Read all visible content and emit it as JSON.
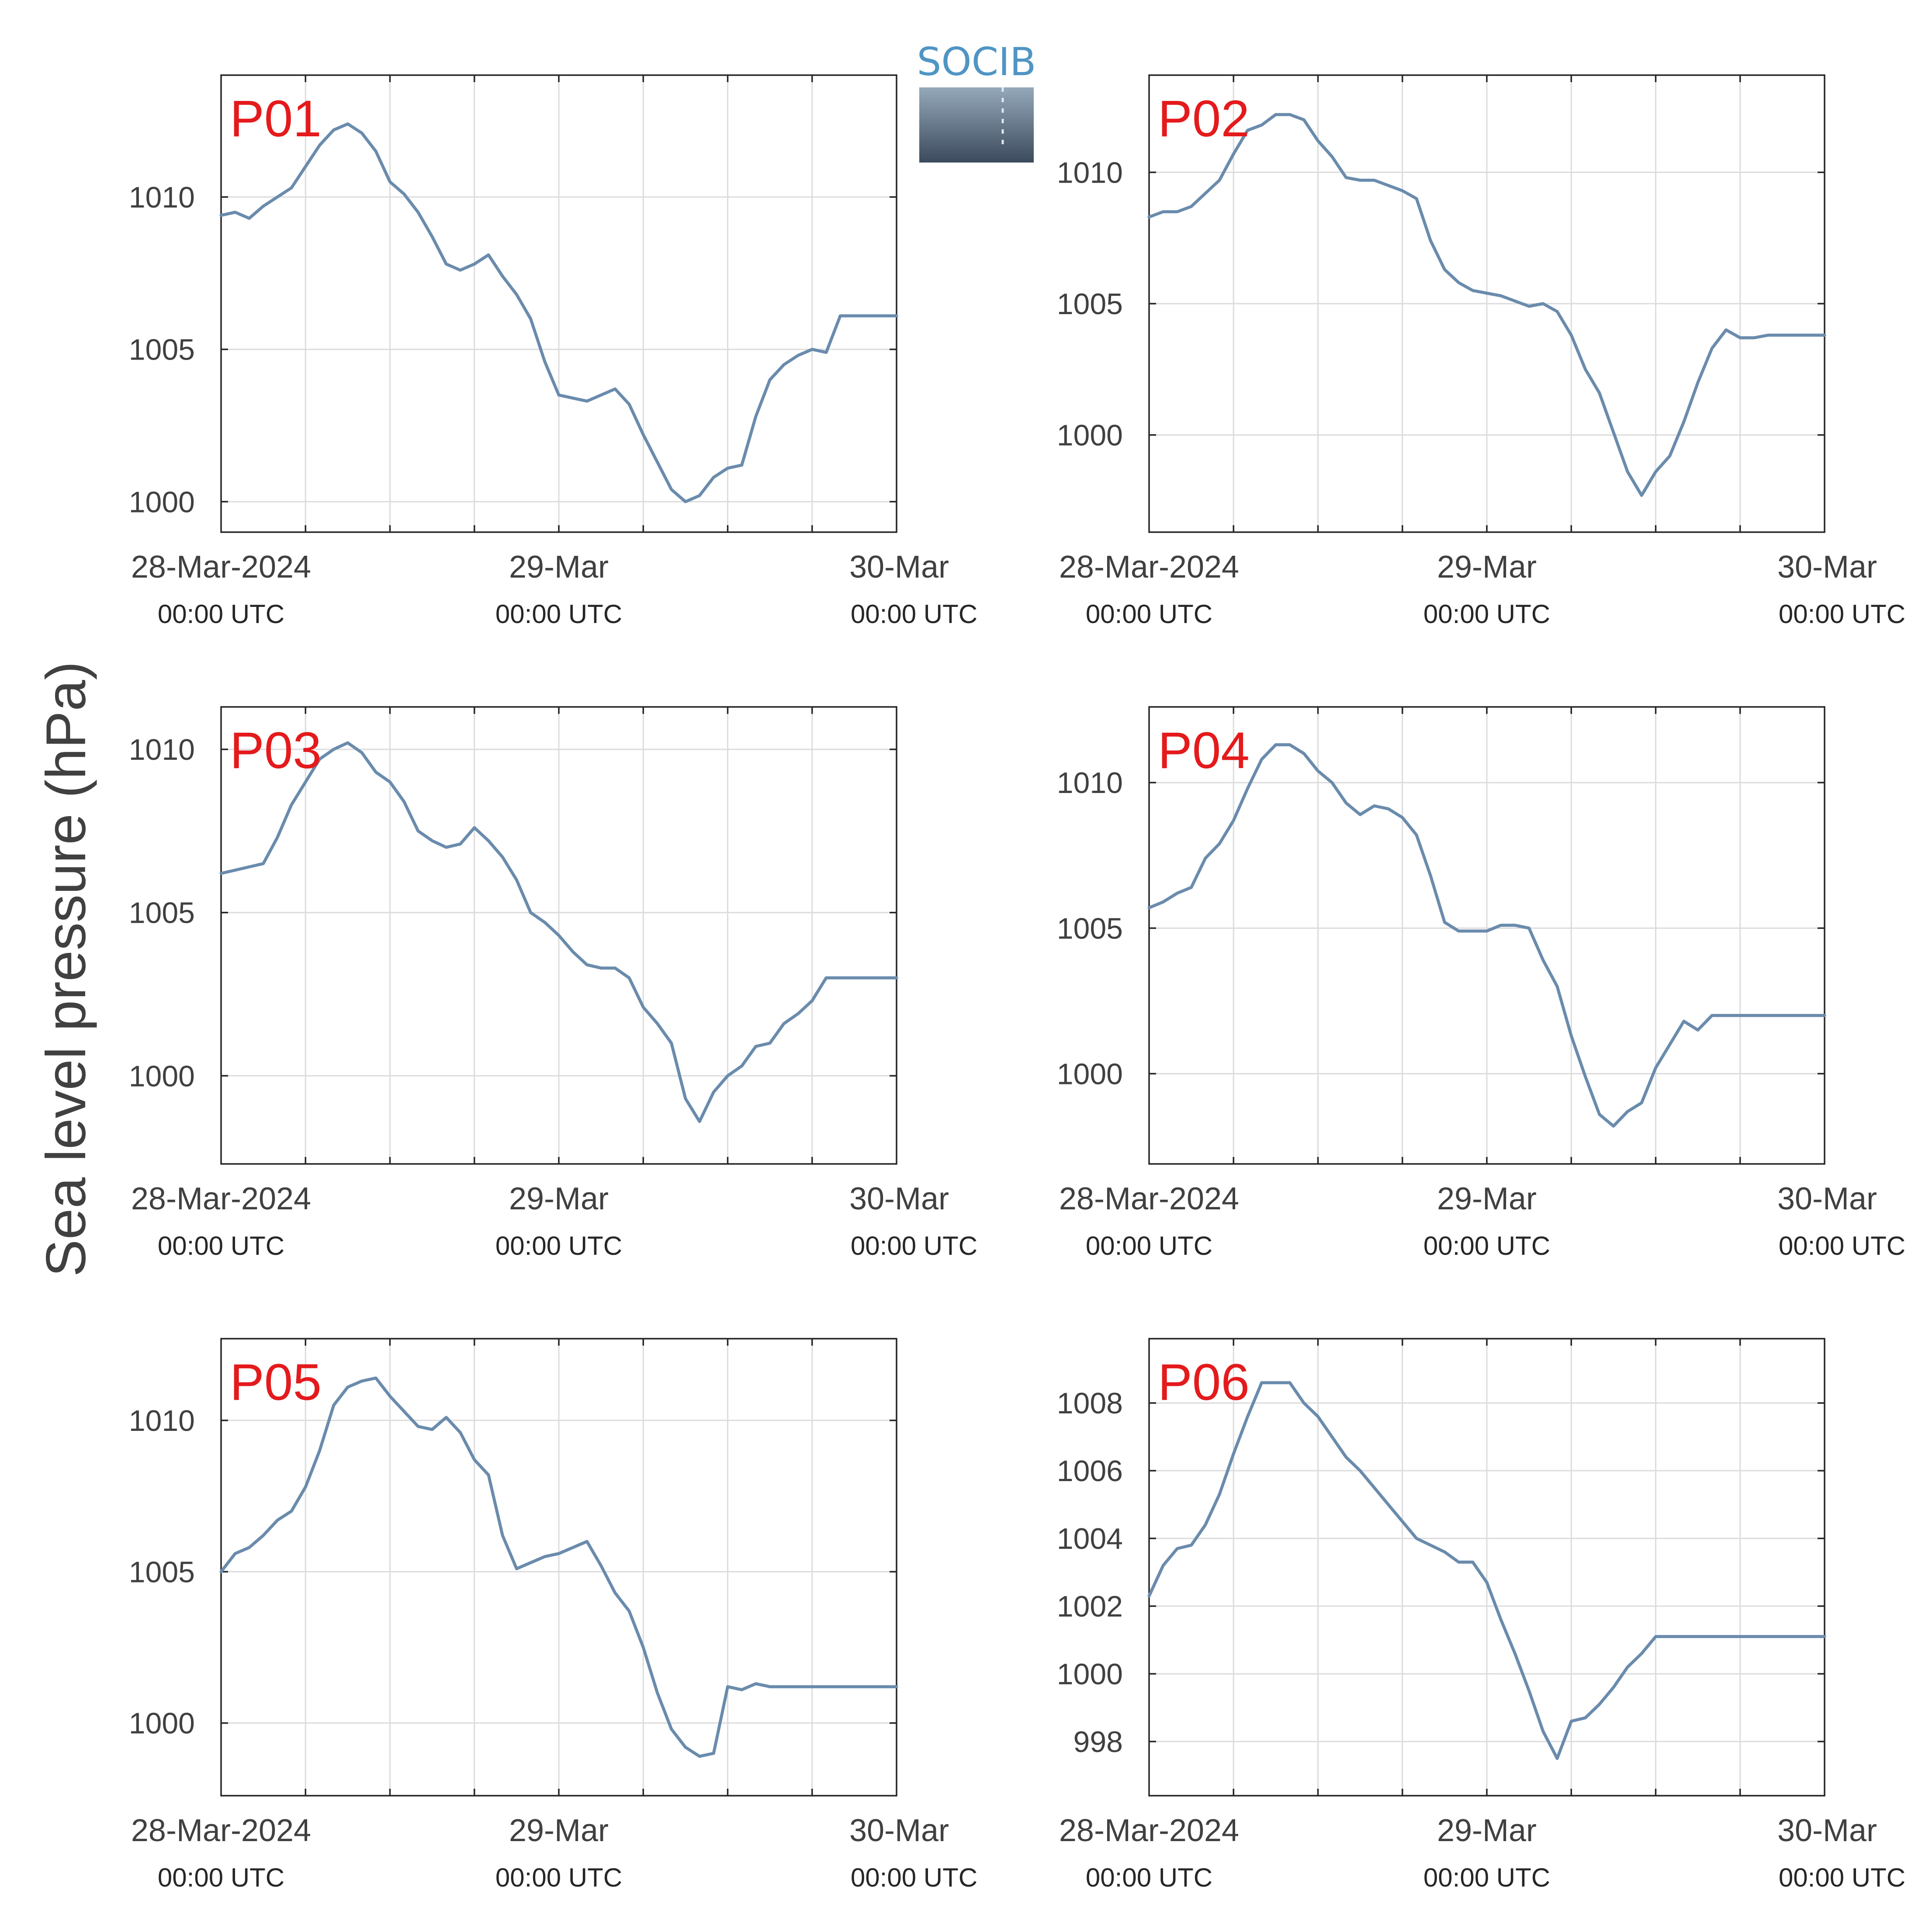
{
  "figure": {
    "ylabel": "Sea level pressure (hPa)",
    "logo_text": "SOCIB"
  },
  "colors": {
    "line": "#6a8bac",
    "panel_label": "#e41a1c",
    "grid": "#dcdcdc",
    "axes": "#262626"
  },
  "chart_data": [
    {
      "type": "line",
      "panel_label": "P01",
      "x_tick_labels": [
        "28-Mar-2024",
        "29-Mar",
        "30-Mar"
      ],
      "x_tick_sublabels": [
        "00:00 UTC",
        "00:00 UTC",
        "00:00 UTC"
      ],
      "xlim_hours": [
        0,
        48
      ],
      "ylim": [
        999.0,
        1014.0
      ],
      "yticks": [
        1000,
        1005,
        1010
      ],
      "x_hours": [
        0,
        1,
        2,
        3,
        4,
        5,
        6,
        7,
        8,
        9,
        10,
        11,
        12,
        13,
        14,
        15,
        16,
        17,
        18,
        19,
        20,
        21,
        22,
        23,
        24,
        25,
        26,
        27,
        28,
        29,
        30,
        31,
        32,
        33,
        34,
        35,
        36,
        37,
        38,
        39,
        40,
        41,
        42,
        43,
        44,
        45,
        46,
        47,
        48
      ],
      "values": [
        1009.4,
        1009.5,
        1009.3,
        1009.7,
        1010.0,
        1010.3,
        1011.0,
        1011.7,
        1012.2,
        1012.4,
        1012.1,
        1011.5,
        1010.5,
        1010.1,
        1009.5,
        1008.7,
        1007.8,
        1007.6,
        1007.8,
        1008.1,
        1007.4,
        1006.8,
        1006.0,
        1004.6,
        1003.5,
        1003.4,
        1003.3,
        1003.5,
        1003.7,
        1003.2,
        1002.2,
        1001.3,
        1000.4,
        1000.0,
        1000.2,
        1000.8,
        1001.1,
        1001.2,
        1002.8,
        1004.0,
        1004.5,
        1004.8,
        1005.0,
        1004.9,
        1006.1,
        1006.1,
        1006.1,
        1006.1,
        1006.1
      ]
    },
    {
      "type": "line",
      "panel_label": "P02",
      "x_tick_labels": [
        "28-Mar-2024",
        "29-Mar",
        "30-Mar"
      ],
      "x_tick_sublabels": [
        "00:00 UTC",
        "00:00 UTC",
        "00:00 UTC"
      ],
      "xlim_hours": [
        0,
        48
      ],
      "ylim": [
        996.3,
        1013.7
      ],
      "yticks": [
        1000,
        1005,
        1010
      ],
      "x_hours": [
        0,
        1,
        2,
        3,
        4,
        5,
        6,
        7,
        8,
        9,
        10,
        11,
        12,
        13,
        14,
        15,
        16,
        17,
        18,
        19,
        20,
        21,
        22,
        23,
        24,
        25,
        26,
        27,
        28,
        29,
        30,
        31,
        32,
        33,
        34,
        35,
        36,
        37,
        38,
        39,
        40,
        41,
        42,
        43,
        44,
        45,
        46,
        47,
        48
      ],
      "values": [
        1008.3,
        1008.5,
        1008.5,
        1008.7,
        1009.2,
        1009.7,
        1010.7,
        1011.6,
        1011.8,
        1012.2,
        1012.2,
        1012.0,
        1011.2,
        1010.6,
        1009.8,
        1009.7,
        1009.7,
        1009.5,
        1009.3,
        1009.0,
        1007.4,
        1006.3,
        1005.8,
        1005.5,
        1005.4,
        1005.3,
        1005.1,
        1004.9,
        1005.0,
        1004.7,
        1003.8,
        1002.5,
        1001.6,
        1000.1,
        998.6,
        997.7,
        998.6,
        999.2,
        1000.5,
        1002.0,
        1003.3,
        1004.0,
        1003.7,
        1003.7,
        1003.8,
        1003.8,
        1003.8,
        1003.8,
        1003.8
      ]
    },
    {
      "type": "line",
      "panel_label": "P03",
      "x_tick_labels": [
        "28-Mar-2024",
        "29-Mar",
        "30-Mar"
      ],
      "x_tick_sublabels": [
        "00:00 UTC",
        "00:00 UTC",
        "00:00 UTC"
      ],
      "xlim_hours": [
        0,
        48
      ],
      "ylim": [
        997.3,
        1011.3
      ],
      "yticks": [
        1000,
        1005,
        1010
      ],
      "x_hours": [
        0,
        1,
        2,
        3,
        4,
        5,
        6,
        7,
        8,
        9,
        10,
        11,
        12,
        13,
        14,
        15,
        16,
        17,
        18,
        19,
        20,
        21,
        22,
        23,
        24,
        25,
        26,
        27,
        28,
        29,
        30,
        31,
        32,
        33,
        34,
        35,
        36,
        37,
        38,
        39,
        40,
        41,
        42,
        43,
        44,
        45,
        46,
        47,
        48
      ],
      "values": [
        1006.2,
        1006.3,
        1006.4,
        1006.5,
        1007.3,
        1008.3,
        1009.0,
        1009.7,
        1010.0,
        1010.2,
        1009.9,
        1009.3,
        1009.0,
        1008.4,
        1007.5,
        1007.2,
        1007.0,
        1007.1,
        1007.6,
        1007.2,
        1006.7,
        1006.0,
        1005.0,
        1004.7,
        1004.3,
        1003.8,
        1003.4,
        1003.3,
        1003.3,
        1003.0,
        1002.1,
        1001.6,
        1001.0,
        999.3,
        998.6,
        999.5,
        1000.0,
        1000.3,
        1000.9,
        1001.0,
        1001.6,
        1001.9,
        1002.3,
        1003.0,
        1003.0,
        1003.0,
        1003.0,
        1003.0,
        1003.0
      ]
    },
    {
      "type": "line",
      "panel_label": "P04",
      "x_tick_labels": [
        "28-Mar-2024",
        "29-Mar",
        "30-Mar"
      ],
      "x_tick_sublabels": [
        "00:00 UTC",
        "00:00 UTC",
        "00:00 UTC"
      ],
      "xlim_hours": [
        0,
        48
      ],
      "ylim": [
        996.9,
        1012.6
      ],
      "yticks": [
        1000,
        1005,
        1010
      ],
      "x_hours": [
        0,
        1,
        2,
        3,
        4,
        5,
        6,
        7,
        8,
        9,
        10,
        11,
        12,
        13,
        14,
        15,
        16,
        17,
        18,
        19,
        20,
        21,
        22,
        23,
        24,
        25,
        26,
        27,
        28,
        29,
        30,
        31,
        32,
        33,
        34,
        35,
        36,
        37,
        38,
        39,
        40,
        41,
        42,
        43,
        44,
        45,
        46,
        47,
        48
      ],
      "values": [
        1005.7,
        1005.9,
        1006.2,
        1006.4,
        1007.4,
        1007.9,
        1008.7,
        1009.8,
        1010.8,
        1011.3,
        1011.3,
        1011.0,
        1010.4,
        1010.0,
        1009.3,
        1008.9,
        1009.2,
        1009.1,
        1008.8,
        1008.2,
        1006.8,
        1005.2,
        1004.9,
        1004.9,
        1004.9,
        1005.1,
        1005.1,
        1005.0,
        1003.9,
        1003.0,
        1001.3,
        999.9,
        998.6,
        998.2,
        998.7,
        999.0,
        1000.2,
        1001.0,
        1001.8,
        1001.5,
        1002.0,
        1002.0,
        1002.0,
        1002.0,
        1002.0,
        1002.0,
        1002.0,
        1002.0,
        1002.0
      ]
    },
    {
      "type": "line",
      "panel_label": "P05",
      "x_tick_labels": [
        "28-Mar-2024",
        "29-Mar",
        "30-Mar"
      ],
      "x_tick_sublabels": [
        "00:00 UTC",
        "00:00 UTC",
        "00:00 UTC"
      ],
      "xlim_hours": [
        0,
        48
      ],
      "ylim": [
        997.6,
        1012.7
      ],
      "yticks": [
        1000,
        1005,
        1010
      ],
      "x_hours": [
        0,
        1,
        2,
        3,
        4,
        5,
        6,
        7,
        8,
        9,
        10,
        11,
        12,
        13,
        14,
        15,
        16,
        17,
        18,
        19,
        20,
        21,
        22,
        23,
        24,
        25,
        26,
        27,
        28,
        29,
        30,
        31,
        32,
        33,
        34,
        35,
        36,
        37,
        38,
        39,
        40,
        41,
        42,
        43,
        44,
        45,
        46,
        47,
        48
      ],
      "values": [
        1005.0,
        1005.6,
        1005.8,
        1006.2,
        1006.7,
        1007.0,
        1007.8,
        1009.0,
        1010.5,
        1011.1,
        1011.3,
        1011.4,
        1010.8,
        1010.3,
        1009.8,
        1009.7,
        1010.1,
        1009.6,
        1008.7,
        1008.2,
        1006.2,
        1005.1,
        1005.3,
        1005.5,
        1005.6,
        1005.8,
        1006.0,
        1005.2,
        1004.3,
        1003.7,
        1002.5,
        1001.0,
        999.8,
        999.2,
        998.9,
        999.0,
        1001.2,
        1001.1,
        1001.3,
        1001.2,
        1001.2,
        1001.2,
        1001.2,
        1001.2,
        1001.2,
        1001.2,
        1001.2,
        1001.2,
        1001.2
      ]
    },
    {
      "type": "line",
      "panel_label": "P06",
      "x_tick_labels": [
        "28-Mar-2024",
        "29-Mar",
        "30-Mar"
      ],
      "x_tick_sublabels": [
        "00:00 UTC",
        "00:00 UTC",
        "00:00 UTC"
      ],
      "xlim_hours": [
        0,
        48
      ],
      "ylim": [
        996.4,
        1009.9
      ],
      "yticks": [
        998,
        1000,
        1002,
        1004,
        1006,
        1008
      ],
      "x_hours": [
        0,
        1,
        2,
        3,
        4,
        5,
        6,
        7,
        8,
        9,
        10,
        11,
        12,
        13,
        14,
        15,
        16,
        17,
        18,
        19,
        20,
        21,
        22,
        23,
        24,
        25,
        26,
        27,
        28,
        29,
        30,
        31,
        32,
        33,
        34,
        35,
        36,
        37,
        38,
        39,
        40,
        41,
        42,
        43,
        44,
        45,
        46,
        47,
        48
      ],
      "values": [
        1002.3,
        1003.2,
        1003.7,
        1003.8,
        1004.4,
        1005.3,
        1006.5,
        1007.6,
        1008.6,
        1008.6,
        1008.6,
        1008.0,
        1007.6,
        1007.0,
        1006.4,
        1006.0,
        1005.5,
        1005.0,
        1004.5,
        1004.0,
        1003.8,
        1003.6,
        1003.3,
        1003.3,
        1002.7,
        1001.6,
        1000.6,
        999.5,
        998.3,
        997.5,
        998.6,
        998.7,
        999.1,
        999.6,
        1000.2,
        1000.6,
        1001.1,
        1001.1,
        1001.1,
        1001.1,
        1001.1,
        1001.1,
        1001.1,
        1001.1,
        1001.1,
        1001.1,
        1001.1,
        1001.1,
        1001.1
      ]
    }
  ]
}
